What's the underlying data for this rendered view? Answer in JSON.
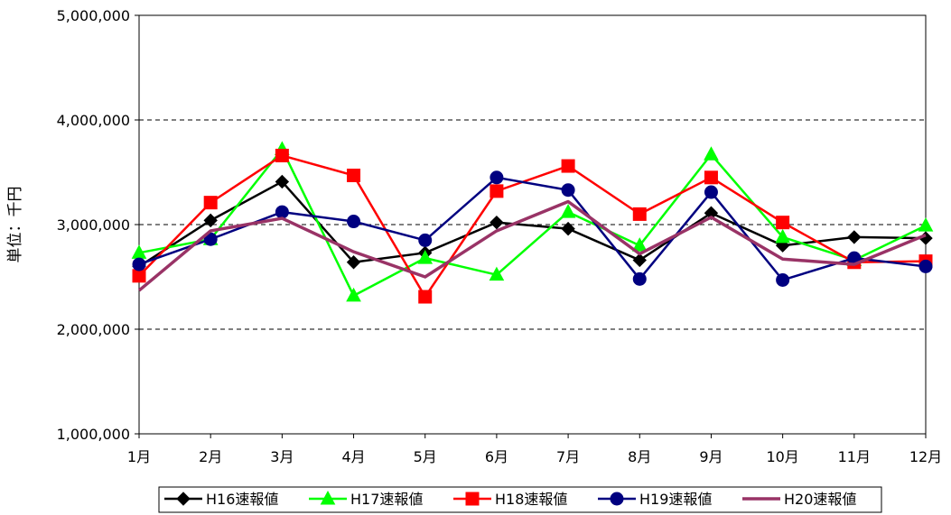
{
  "chart_data": {
    "type": "line",
    "categories": [
      "1月",
      "2月",
      "3月",
      "4月",
      "5月",
      "6月",
      "7月",
      "8月",
      "9月",
      "10月",
      "11月",
      "12月"
    ],
    "ylabel": "単位：千円",
    "ylim": [
      1000000,
      5000000
    ],
    "yticks": [
      1000000,
      2000000,
      3000000,
      4000000,
      5000000
    ],
    "ytick_labels": [
      "1,000,000",
      "2,000,000",
      "3,000,000",
      "4,000,000",
      "5,000,000"
    ],
    "grid": "horizontal-dashed",
    "legend_position": "bottom",
    "series": [
      {
        "name": "H16速報値",
        "color": "#000000",
        "marker": "diamond",
        "values": [
          2600000,
          3040000,
          3410000,
          2640000,
          2730000,
          3020000,
          2960000,
          2660000,
          3110000,
          2800000,
          2880000,
          2870000
        ]
      },
      {
        "name": "H17速報値",
        "color": "#00ff00",
        "marker": "triangle",
        "values": [
          2730000,
          2860000,
          3720000,
          2320000,
          2680000,
          2520000,
          3120000,
          2800000,
          3670000,
          2880000,
          2660000,
          2990000
        ]
      },
      {
        "name": "H18速報値",
        "color": "#ff0000",
        "marker": "square",
        "values": [
          2510000,
          3210000,
          3660000,
          3470000,
          2310000,
          3320000,
          3560000,
          3100000,
          3450000,
          3020000,
          2640000,
          2650000
        ]
      },
      {
        "name": "H19速報値",
        "color": "#000080",
        "marker": "circle",
        "values": [
          2620000,
          2860000,
          3120000,
          3030000,
          2850000,
          3450000,
          3330000,
          2480000,
          3310000,
          2470000,
          2680000,
          2600000
        ]
      },
      {
        "name": "H20速報値",
        "color": "#993366",
        "marker": "none",
        "values": [
          2370000,
          2940000,
          3060000,
          2740000,
          2500000,
          2940000,
          3220000,
          2720000,
          3070000,
          2670000,
          2620000,
          2900000
        ]
      }
    ]
  }
}
